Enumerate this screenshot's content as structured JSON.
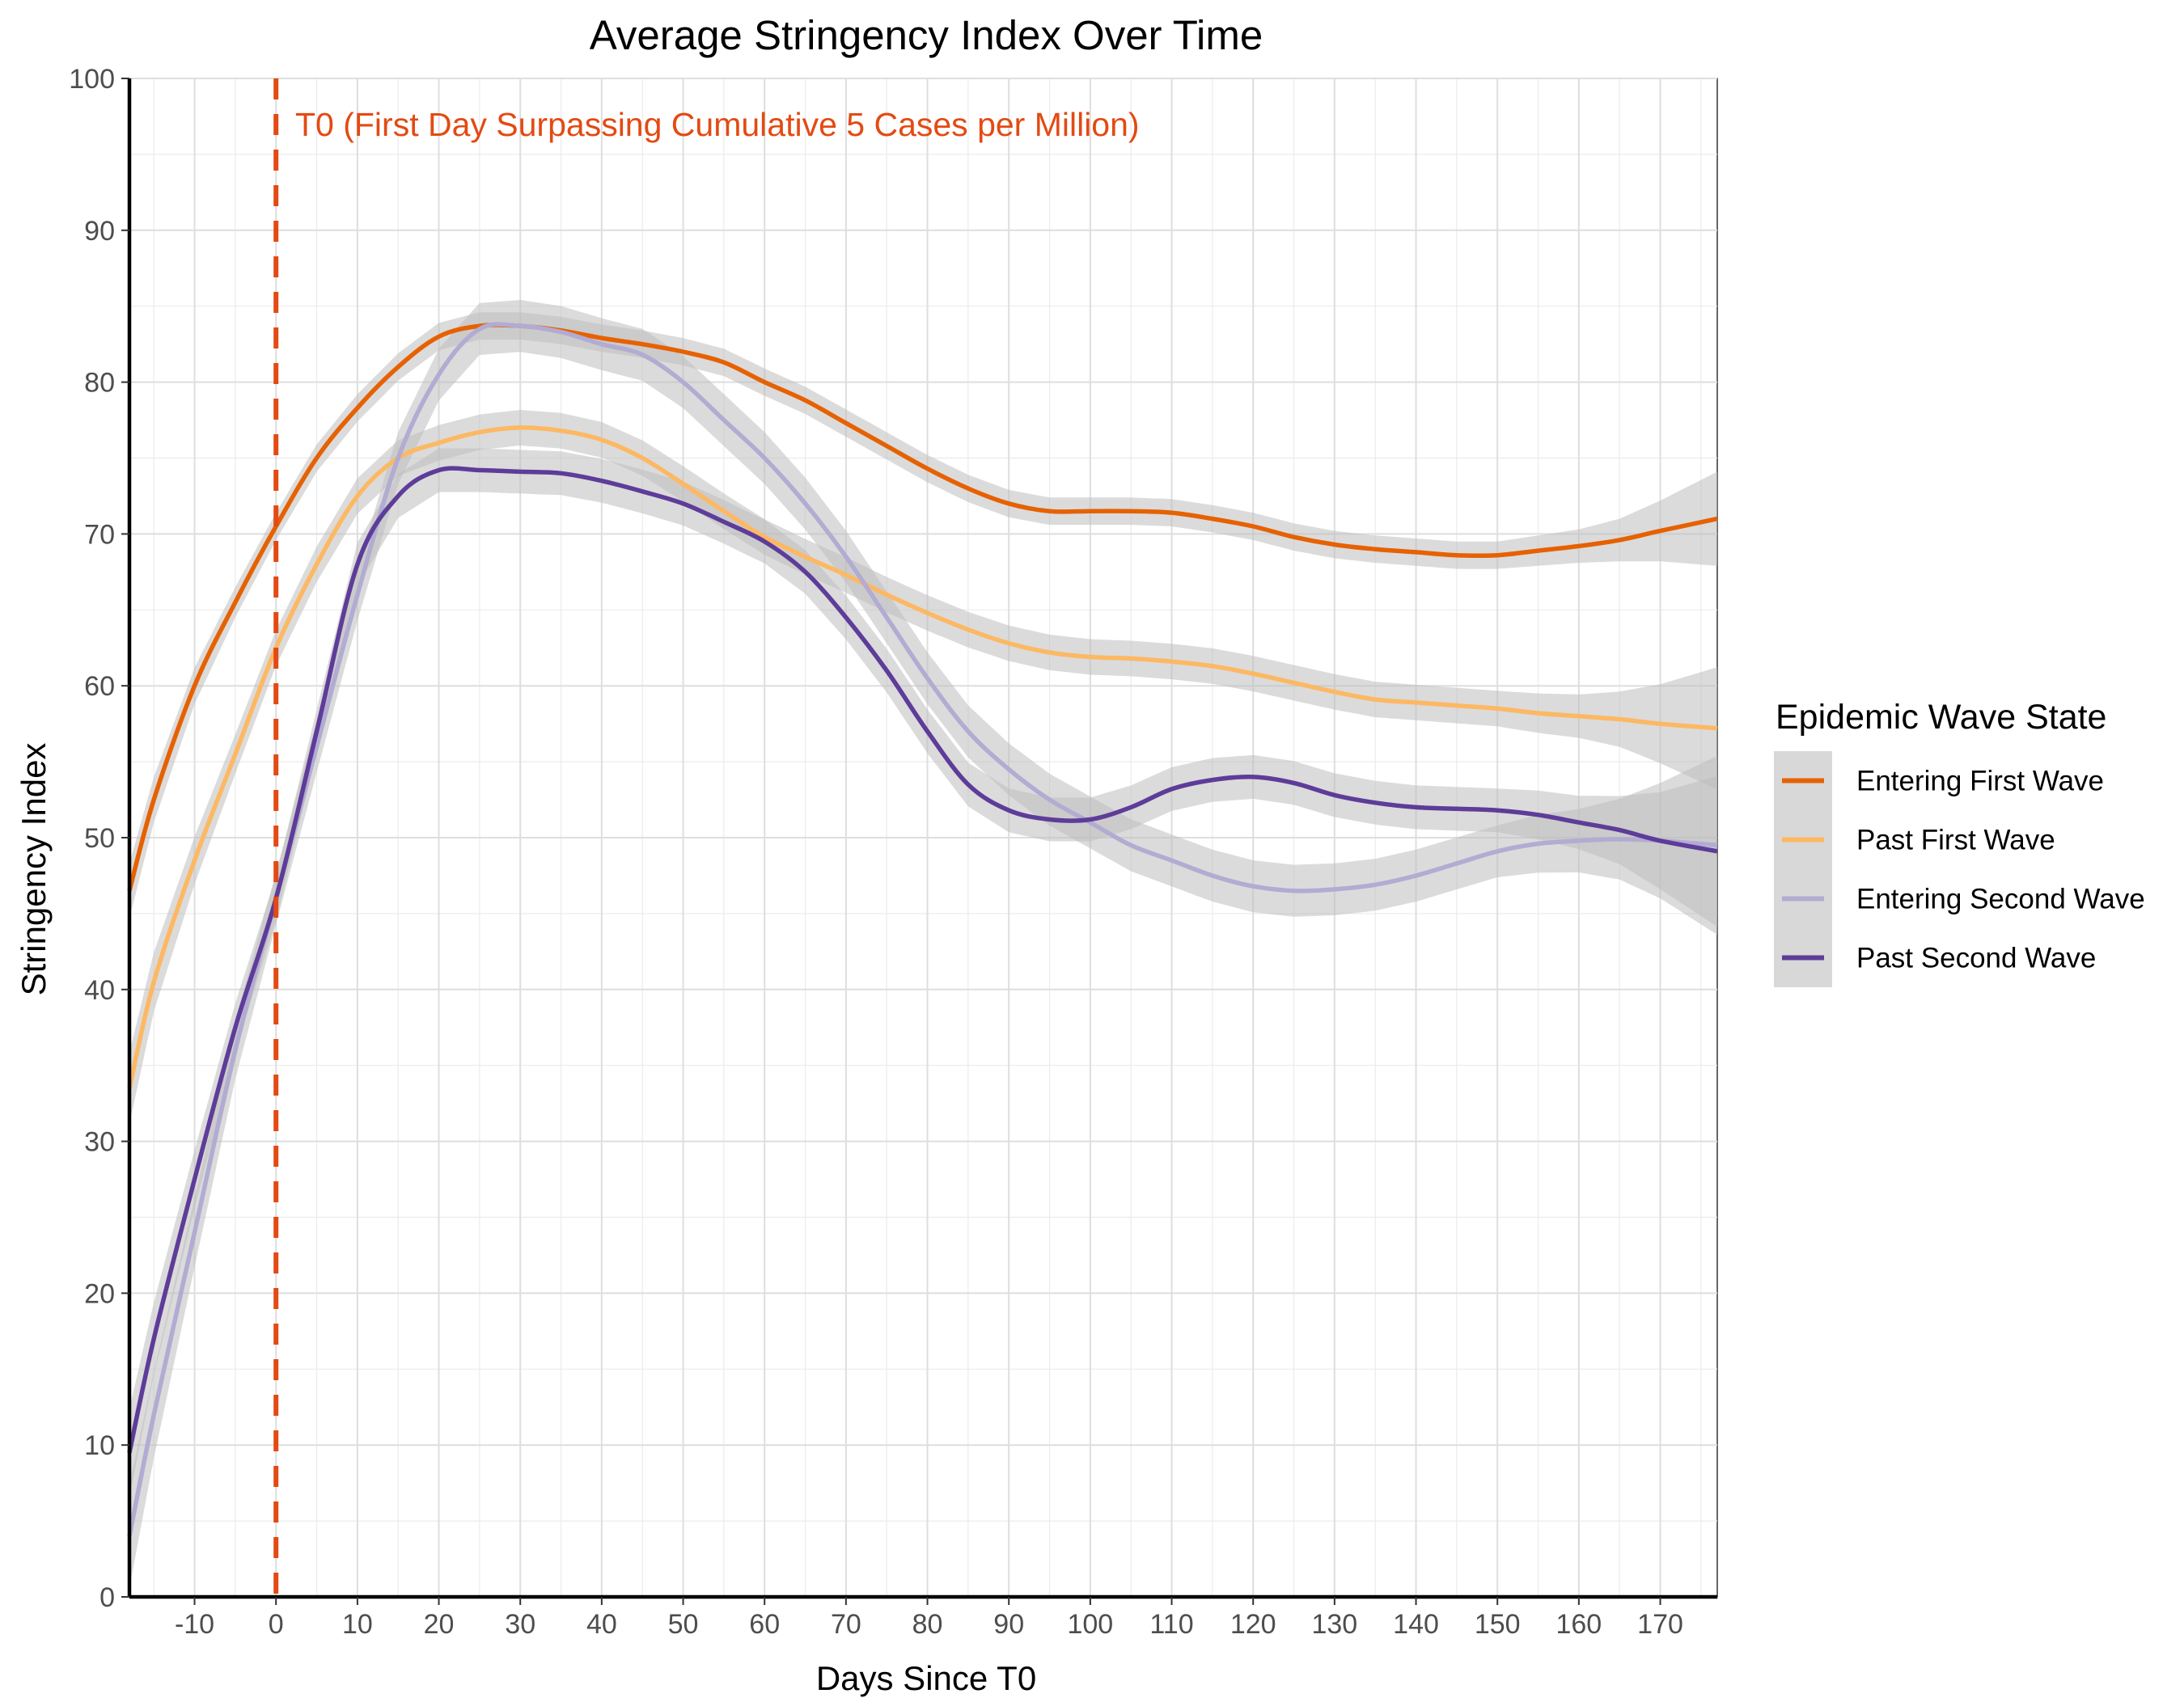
{
  "chart_data": {
    "type": "line",
    "title": "Average Stringency Index Over Time",
    "xlabel": "Days Since T0",
    "ylabel": "Stringency Index",
    "xlim": [
      -18,
      177
    ],
    "ylim": [
      0,
      100
    ],
    "x_ticks": [
      -10,
      0,
      10,
      20,
      30,
      40,
      50,
      60,
      70,
      80,
      90,
      100,
      110,
      120,
      130,
      140,
      150,
      160,
      170
    ],
    "y_ticks": [
      0,
      10,
      20,
      30,
      40,
      50,
      60,
      70,
      80,
      90,
      100
    ],
    "grid": true,
    "vline": {
      "x": 0,
      "color": "#E34A13",
      "style": "dashed",
      "label": "T0 (First Day Surpassing Cumulative 5 Cases per Million)"
    },
    "legend": {
      "title": "Epidemic Wave State",
      "position": "right"
    },
    "confidence_band_color": "#BEBEBE",
    "series": [
      {
        "name": "Entering First Wave",
        "color": "#E66101",
        "x": [
          -18,
          -15,
          -10,
          -5,
          0,
          5,
          10,
          15,
          20,
          25,
          30,
          35,
          40,
          45,
          50,
          55,
          60,
          65,
          70,
          75,
          80,
          85,
          90,
          95,
          100,
          105,
          110,
          115,
          120,
          125,
          130,
          135,
          140,
          145,
          150,
          155,
          160,
          165,
          170,
          177
        ],
        "y": [
          46.5,
          52.5,
          60.0,
          65.5,
          70.5,
          75.0,
          78.3,
          81.0,
          83.0,
          83.7,
          83.7,
          83.4,
          82.9,
          82.5,
          82.0,
          81.3,
          80.0,
          78.8,
          77.3,
          75.8,
          74.3,
          73.0,
          72.0,
          71.5,
          71.5,
          71.5,
          71.4,
          71.0,
          70.5,
          69.8,
          69.3,
          69.0,
          68.8,
          68.6,
          68.6,
          68.9,
          69.2,
          69.6,
          70.2,
          71.0
        ],
        "ci_half_width": [
          1.8,
          1.5,
          1.2,
          1.0,
          0.9,
          0.9,
          0.9,
          0.9,
          0.9,
          0.9,
          0.9,
          0.9,
          0.9,
          0.9,
          0.9,
          0.9,
          0.9,
          0.9,
          0.9,
          0.9,
          0.9,
          0.9,
          0.9,
          0.9,
          0.9,
          0.9,
          0.9,
          0.9,
          0.9,
          0.9,
          0.9,
          0.9,
          0.9,
          0.9,
          0.9,
          1.0,
          1.1,
          1.4,
          2.0,
          3.1
        ]
      },
      {
        "name": "Past First Wave",
        "color": "#FDB863",
        "x": [
          -18,
          -15,
          -10,
          -5,
          0,
          5,
          10,
          15,
          20,
          25,
          30,
          35,
          40,
          45,
          50,
          55,
          60,
          65,
          70,
          75,
          80,
          85,
          90,
          95,
          100,
          105,
          110,
          115,
          120,
          125,
          130,
          135,
          140,
          145,
          150,
          155,
          160,
          165,
          170,
          177
        ],
        "y": [
          33.5,
          40.5,
          48.5,
          55.5,
          62.5,
          68.0,
          72.5,
          75.0,
          76.0,
          76.7,
          77.0,
          76.8,
          76.2,
          75.0,
          73.3,
          71.5,
          69.8,
          68.5,
          67.3,
          66.0,
          64.8,
          63.7,
          62.8,
          62.2,
          61.9,
          61.8,
          61.6,
          61.3,
          60.8,
          60.2,
          59.6,
          59.1,
          58.9,
          58.7,
          58.5,
          58.2,
          58.0,
          57.8,
          57.5,
          57.2
        ]
      },
      {
        "name": "Entering Second Wave",
        "color": "#B2ABD2",
        "x": [
          -18,
          -15,
          -10,
          -5,
          0,
          5,
          10,
          15,
          20,
          25,
          30,
          35,
          40,
          45,
          50,
          55,
          60,
          65,
          70,
          75,
          80,
          85,
          90,
          95,
          100,
          105,
          110,
          115,
          120,
          125,
          130,
          135,
          140,
          145,
          150,
          155,
          160,
          165,
          170,
          177
        ],
        "y": [
          4.0,
          12.0,
          24.0,
          36.0,
          46.0,
          56.0,
          66.0,
          75.0,
          80.5,
          83.5,
          83.7,
          83.3,
          82.5,
          81.8,
          80.0,
          77.5,
          75.0,
          72.0,
          68.5,
          64.5,
          60.5,
          57.0,
          54.5,
          52.5,
          51.0,
          49.5,
          48.5,
          47.5,
          46.8,
          46.5,
          46.6,
          46.9,
          47.5,
          48.3,
          49.1,
          49.6,
          49.8,
          49.9,
          49.8,
          49.5
        ]
      },
      {
        "name": "Past Second Wave",
        "color": "#5E3C99",
        "x": [
          -18,
          -15,
          -10,
          -5,
          0,
          5,
          10,
          15,
          20,
          25,
          30,
          35,
          40,
          45,
          50,
          55,
          60,
          65,
          70,
          75,
          80,
          85,
          90,
          95,
          100,
          105,
          110,
          115,
          120,
          125,
          130,
          135,
          140,
          145,
          150,
          155,
          160,
          165,
          170,
          177
        ],
        "y": [
          9.5,
          17.0,
          27.5,
          37.5,
          46.0,
          57.0,
          68.0,
          72.5,
          74.2,
          74.2,
          74.1,
          74.0,
          73.5,
          72.8,
          72.0,
          70.8,
          69.5,
          67.5,
          64.5,
          61.0,
          57.0,
          53.5,
          51.8,
          51.2,
          51.2,
          52.0,
          53.2,
          53.8,
          54.0,
          53.6,
          52.8,
          52.3,
          52.0,
          51.9,
          51.8,
          51.5,
          51.0,
          50.5,
          49.8,
          49.1
        ]
      }
    ]
  }
}
